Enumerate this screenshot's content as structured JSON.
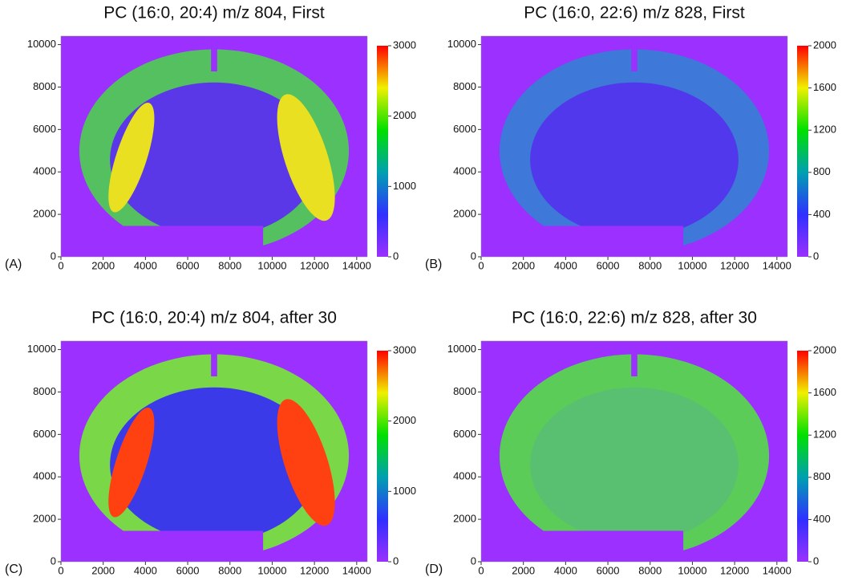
{
  "chart_data": [
    {
      "type": "heatmap",
      "title": "PC (16:0, 20:4) m/z 804, First",
      "panel_label": "(A)",
      "xlim": [
        0,
        14500
      ],
      "xticks": [
        0,
        2000,
        4000,
        6000,
        8000,
        10000,
        12000,
        14000
      ],
      "ylim": [
        0,
        10400
      ],
      "yticks": [
        0,
        2000,
        4000,
        6000,
        8000,
        10000
      ],
      "colorbar_lim": [
        0,
        3000
      ],
      "colorbar_ticks": [
        0,
        1000,
        2000,
        3000
      ],
      "colormap": [
        "#9b30ff",
        "#3030ff",
        "#00a0b0",
        "#00e000",
        "#f0f000",
        "#ff0000"
      ]
    },
    {
      "type": "heatmap",
      "title": "PC (16:0, 22:6) m/z 828, First",
      "panel_label": "(B)",
      "xlim": [
        0,
        14500
      ],
      "xticks": [
        0,
        2000,
        4000,
        6000,
        8000,
        10000,
        12000,
        14000
      ],
      "ylim": [
        0,
        10400
      ],
      "yticks": [
        0,
        2000,
        4000,
        6000,
        8000,
        10000
      ],
      "colorbar_lim": [
        0,
        2000
      ],
      "colorbar_ticks": [
        0,
        400,
        800,
        1200,
        1600,
        2000
      ],
      "colormap": [
        "#9b30ff",
        "#3030ff",
        "#00a0b0",
        "#00e000",
        "#f0f000",
        "#ff0000"
      ]
    },
    {
      "type": "heatmap",
      "title": "PC (16:0, 20:4) m/z 804, after 30",
      "panel_label": "(C)",
      "xlim": [
        0,
        14500
      ],
      "xticks": [
        0,
        2000,
        4000,
        6000,
        8000,
        10000,
        12000,
        14000
      ],
      "ylim": [
        0,
        10400
      ],
      "yticks": [
        0,
        2000,
        4000,
        6000,
        8000,
        10000
      ],
      "colorbar_lim": [
        0,
        3000
      ],
      "colorbar_ticks": [
        0,
        1000,
        2000,
        3000
      ],
      "colormap": [
        "#9b30ff",
        "#3030ff",
        "#00a0b0",
        "#00e000",
        "#f0f000",
        "#ff0000"
      ]
    },
    {
      "type": "heatmap",
      "title": "PC (16:0, 22:6) m/z 828, after 30",
      "panel_label": "(D)",
      "xlim": [
        0,
        14500
      ],
      "xticks": [
        0,
        2000,
        4000,
        6000,
        8000,
        10000,
        12000,
        14000
      ],
      "ylim": [
        0,
        10400
      ],
      "yticks": [
        0,
        2000,
        4000,
        6000,
        8000,
        10000
      ],
      "colorbar_lim": [
        0,
        2000
      ],
      "colorbar_ticks": [
        0,
        400,
        800,
        1200,
        1600,
        2000
      ],
      "colormap": [
        "#9b30ff",
        "#3030ff",
        "#00a0b0",
        "#00e000",
        "#f0f000",
        "#ff0000"
      ]
    }
  ]
}
